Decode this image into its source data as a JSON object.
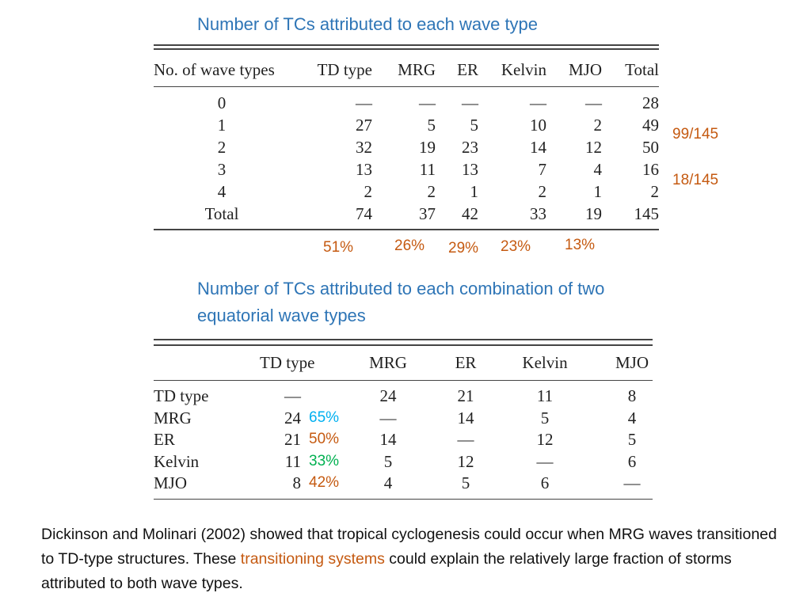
{
  "table1": {
    "title": "Number of TCs attributed to each wave type",
    "headers": [
      "No. of wave types",
      "TD type",
      "MRG",
      "ER",
      "Kelvin",
      "MJO",
      "Total"
    ],
    "rows": [
      [
        "0",
        "—",
        "—",
        "—",
        "—",
        "—",
        "28"
      ],
      [
        "1",
        "27",
        "5",
        "5",
        "10",
        "2",
        "49"
      ],
      [
        "2",
        "32",
        "19",
        "23",
        "14",
        "12",
        "50"
      ],
      [
        "3",
        "13",
        "11",
        "13",
        "7",
        "4",
        "16"
      ],
      [
        "4",
        "2",
        "2",
        "1",
        "2",
        "1",
        "2"
      ],
      [
        "Total",
        "74",
        "37",
        "42",
        "33",
        "19",
        "145"
      ]
    ],
    "percentages": [
      "51%",
      "26%",
      "29%",
      "23%",
      "13%"
    ],
    "side_notes": [
      "99/145",
      "18/145"
    ]
  },
  "table2": {
    "title": "Number of TCs attributed to each combination of two equatorial wave types",
    "headers": [
      "TD type",
      "MRG",
      "ER",
      "Kelvin",
      "MJO"
    ],
    "rows": [
      {
        "label": "TD type",
        "values": [
          "—",
          "24",
          "21",
          "11",
          "8"
        ],
        "pct": ""
      },
      {
        "label": "MRG",
        "values": [
          "24",
          "—",
          "14",
          "5",
          "4"
        ],
        "pct": "65%"
      },
      {
        "label": "ER",
        "values": [
          "21",
          "14",
          "—",
          "12",
          "5"
        ],
        "pct": "50%"
      },
      {
        "label": "Kelvin",
        "values": [
          "11",
          "5",
          "12",
          "—",
          "6"
        ],
        "pct": "33%"
      },
      {
        "label": "MJO",
        "values": [
          "8",
          "4",
          "5",
          "6",
          "—"
        ],
        "pct": "42%"
      }
    ],
    "pct_colors": [
      "#00b0f0",
      "#c55a11",
      "#00b050",
      "#c55a11"
    ]
  },
  "paragraph": {
    "before": "Dickinson and Molinari (2002) showed that tropical cyclogenesis could occur when MRG waves transitioned to TD-type structures. These ",
    "highlight": "transitioning systems",
    "after": " could explain the relatively large fraction of storms attributed to both wave types."
  },
  "colors": {
    "title": "#2e75b6",
    "accent_orange": "#c55a11"
  }
}
